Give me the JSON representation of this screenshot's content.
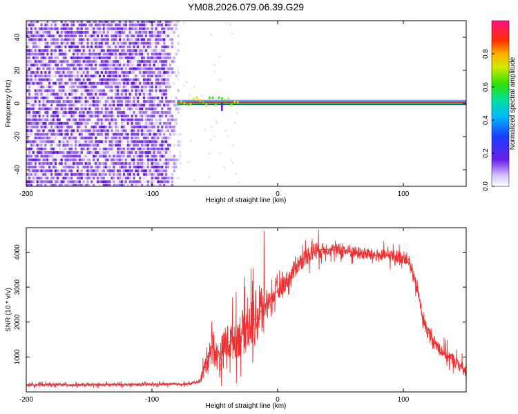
{
  "title": "YM08.2026.079.06.39.G29",
  "colors": {
    "snr_line": "#ee3030",
    "spectro_background": "#ffffff",
    "spectro_noise": "#6a1ee6",
    "axis": "#000000"
  },
  "chart_data": [
    {
      "type": "heatmap",
      "panel": "spectrogram",
      "xlabel": "Height of straight line (km)",
      "ylabel": "Frequency (Hz)",
      "xlim": [
        -200,
        150
      ],
      "ylim": [
        -50,
        50
      ],
      "x_ticks": [
        -200,
        -100,
        0,
        100
      ],
      "y_ticks": [
        -40,
        -20,
        0,
        20,
        40
      ],
      "grid": false,
      "noise_region_x": [
        -200,
        -78
      ],
      "signal_start_x": -80,
      "signal_frequency_hz": 0.5,
      "colorbar": {
        "label": "Normalized spectral amplitude",
        "range": [
          0,
          1
        ],
        "ticks": [
          0.0,
          0.2,
          0.4,
          0.6,
          0.8
        ],
        "tick_labels": [
          "0.0",
          "0.2",
          "0.4",
          "0.6",
          "0.8"
        ],
        "colormap": "rainbow (white-purple-blue-cyan-green-yellow-orange-red-magenta)"
      }
    },
    {
      "type": "line",
      "panel": "snr",
      "xlabel": "Height of straight line (km)",
      "ylabel": "SNR (10 * v/v)",
      "xlim": [
        -200,
        150
      ],
      "ylim": [
        0,
        4700
      ],
      "x_ticks": [
        -200,
        -100,
        0,
        100
      ],
      "y_ticks": [
        1000,
        2000,
        3000,
        4000
      ],
      "grid": false,
      "series": [
        {
          "color": "#ee3030",
          "x": [
            -200,
            -180,
            -160,
            -140,
            -120,
            -100,
            -80,
            -70,
            -62,
            -58,
            -55,
            -52,
            -48,
            -44,
            -40,
            -35,
            -30,
            -25,
            -20,
            -15,
            -10,
            -5,
            0,
            5,
            10,
            15,
            20,
            25,
            30,
            35,
            40,
            50,
            60,
            70,
            80,
            90,
            100,
            104,
            108,
            112,
            116,
            120,
            125,
            130,
            135,
            140,
            145,
            150
          ],
          "y": [
            200,
            210,
            200,
            205,
            210,
            215,
            220,
            230,
            300,
            700,
            1100,
            1300,
            1000,
            1200,
            1400,
            1500,
            1650,
            1800,
            2000,
            2200,
            2500,
            2700,
            2900,
            3100,
            3300,
            3600,
            3800,
            3950,
            4050,
            4080,
            4080,
            4050,
            4000,
            3950,
            3900,
            3900,
            3850,
            3800,
            3300,
            2800,
            2000,
            1700,
            1400,
            1200,
            1050,
            900,
            750,
            550
          ]
        }
      ]
    }
  ]
}
